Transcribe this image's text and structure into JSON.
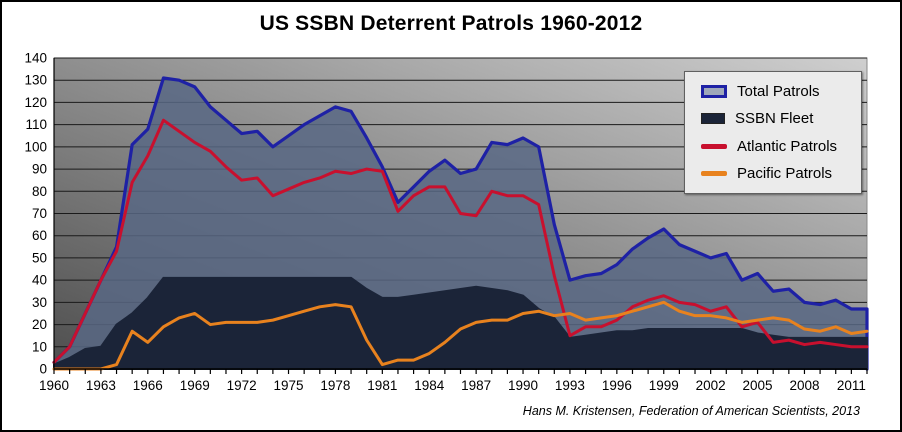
{
  "title": "US SSBN Deterrent Patrols 1960-2012",
  "attribution": "Hans M. Kristensen, Federation of American Scientists, 2013",
  "colors": {
    "plot_bg_dark": "#4E4E4E",
    "plot_bg_light": "#CFCFCF",
    "plot_border": "#888888",
    "gridline": "#1A1A1A",
    "axis": "#000000",
    "legend_bg": "#EBEBEB",
    "total_swatch_inner": "#9FA8BA"
  },
  "chart_data": {
    "type": "area",
    "title": "US SSBN Deterrent Patrols 1960-2012",
    "xlabel": "",
    "ylabel": "",
    "ylim": [
      0,
      140
    ],
    "y_ticks": [
      0,
      10,
      20,
      30,
      40,
      50,
      60,
      70,
      80,
      90,
      100,
      110,
      120,
      130,
      140
    ],
    "x": [
      1960,
      1961,
      1962,
      1963,
      1964,
      1965,
      1966,
      1967,
      1968,
      1969,
      1970,
      1971,
      1972,
      1973,
      1974,
      1975,
      1976,
      1977,
      1978,
      1979,
      1980,
      1981,
      1982,
      1983,
      1984,
      1985,
      1986,
      1987,
      1988,
      1989,
      1990,
      1991,
      1992,
      1993,
      1994,
      1995,
      1996,
      1997,
      1998,
      1999,
      2000,
      2001,
      2002,
      2003,
      2004,
      2005,
      2006,
      2007,
      2008,
      2009,
      2010,
      2011,
      2012
    ],
    "x_tick_labels": [
      "1960",
      "1963",
      "1966",
      "1969",
      "1972",
      "1975",
      "1978",
      "1981",
      "1984",
      "1987",
      "1990",
      "1993",
      "1996",
      "1999",
      "2002",
      "2005",
      "2008",
      "2011"
    ],
    "x_tick_label_every": 3,
    "grid": true,
    "legend_position": "top-right",
    "series": [
      {
        "name": "Total Patrols",
        "render": "area-line",
        "color": "#1E21A5",
        "fill": "rgba(88,103,132,0.85)",
        "values": [
          3,
          10,
          25,
          40,
          55,
          101,
          108,
          131,
          130,
          127,
          118,
          112,
          106,
          107,
          100,
          105,
          110,
          114,
          118,
          116,
          104,
          91,
          75,
          82,
          89,
          94,
          88,
          90,
          102,
          101,
          104,
          100,
          65,
          40,
          42,
          43,
          47,
          54,
          59,
          63,
          56,
          53,
          50,
          52,
          40,
          43,
          35,
          36,
          30,
          29,
          31,
          27,
          27
        ]
      },
      {
        "name": "SSBN Fleet",
        "render": "area",
        "color": "#1B2438",
        "fill": "#1B2438",
        "values": [
          2,
          5,
          9,
          10,
          20,
          25,
          32,
          41,
          41,
          41,
          41,
          41,
          41,
          41,
          41,
          41,
          41,
          41,
          41,
          41,
          36,
          32,
          32,
          33,
          34,
          35,
          36,
          37,
          36,
          35,
          33,
          27,
          23,
          14,
          15,
          16,
          17,
          17,
          18,
          18,
          18,
          18,
          18,
          18,
          18,
          16,
          15,
          14,
          14,
          14,
          14,
          14,
          14
        ]
      },
      {
        "name": "Atlantic Patrols",
        "render": "line",
        "color": "#C8102E",
        "fill": "none",
        "values": [
          3,
          10,
          25,
          40,
          53,
          84,
          96,
          112,
          107,
          102,
          98,
          91,
          85,
          86,
          78,
          81,
          84,
          86,
          89,
          88,
          90,
          89,
          71,
          78,
          82,
          82,
          70,
          69,
          80,
          78,
          78,
          74,
          42,
          15,
          19,
          19,
          22,
          28,
          31,
          33,
          30,
          29,
          26,
          28,
          19,
          21,
          12,
          13,
          11,
          12,
          11,
          10,
          10
        ]
      },
      {
        "name": "Pacific Patrols",
        "render": "line",
        "color": "#E8821E",
        "fill": "none",
        "values": [
          0,
          0,
          0,
          0,
          2,
          17,
          12,
          19,
          23,
          25,
          20,
          21,
          21,
          21,
          22,
          24,
          26,
          28,
          29,
          28,
          13,
          2,
          4,
          4,
          7,
          12,
          18,
          21,
          22,
          22,
          25,
          26,
          24,
          25,
          22,
          23,
          24,
          26,
          28,
          30,
          26,
          24,
          24,
          23,
          21,
          22,
          23,
          22,
          18,
          17,
          19,
          16,
          17
        ]
      }
    ]
  }
}
